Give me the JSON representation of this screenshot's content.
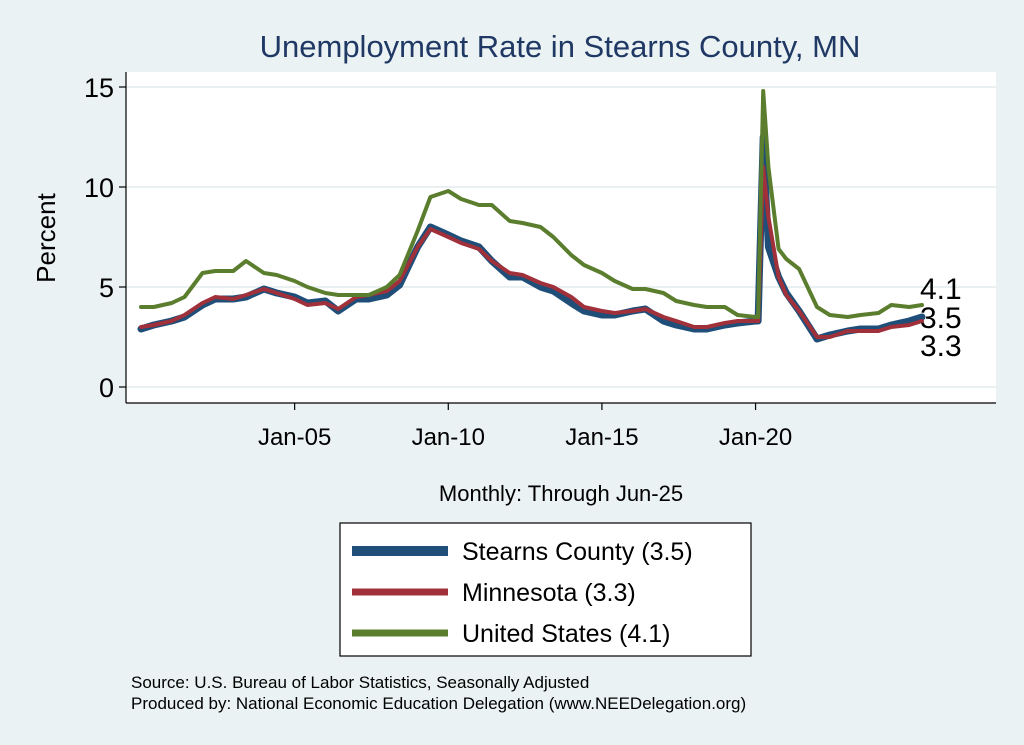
{
  "chart_data": {
    "type": "line",
    "title": "Unemployment Rate in Stearns  County, MN",
    "xlabel": "Monthly: Through Jun-25",
    "ylabel": "Percent",
    "ylim": [
      0,
      16
    ],
    "yticks": [
      0,
      5,
      10,
      15
    ],
    "xrange": [
      "2000-01",
      "2025-06"
    ],
    "xticks": [
      {
        "date": "2005-01",
        "label": "Jan-05"
      },
      {
        "date": "2010-01",
        "label": "Jan-10"
      },
      {
        "date": "2015-01",
        "label": "Jan-15"
      },
      {
        "date": "2020-01",
        "label": "Jan-20"
      }
    ],
    "grid": true,
    "legend_position": "bottom",
    "series": [
      {
        "name": "Stearns  County (3.5)",
        "color": "#1f4e79",
        "end_label": "3.5",
        "points": [
          [
            "2000-01",
            2.9
          ],
          [
            "2000-06",
            3.1
          ],
          [
            "2001-01",
            3.3
          ],
          [
            "2001-06",
            3.5
          ],
          [
            "2002-01",
            4.1
          ],
          [
            "2002-06",
            4.4
          ],
          [
            "2003-01",
            4.4
          ],
          [
            "2003-06",
            4.5
          ],
          [
            "2004-01",
            4.9
          ],
          [
            "2004-06",
            4.7
          ],
          [
            "2005-01",
            4.5
          ],
          [
            "2005-06",
            4.2
          ],
          [
            "2006-01",
            4.3
          ],
          [
            "2006-06",
            3.8
          ],
          [
            "2007-01",
            4.4
          ],
          [
            "2007-06",
            4.4
          ],
          [
            "2008-01",
            4.6
          ],
          [
            "2008-06",
            5.1
          ],
          [
            "2009-01",
            7.0
          ],
          [
            "2009-06",
            8.0
          ],
          [
            "2010-01",
            7.6
          ],
          [
            "2010-06",
            7.3
          ],
          [
            "2011-01",
            7.0
          ],
          [
            "2011-06",
            6.3
          ],
          [
            "2012-01",
            5.5
          ],
          [
            "2012-06",
            5.5
          ],
          [
            "2013-01",
            5.0
          ],
          [
            "2013-06",
            4.8
          ],
          [
            "2014-01",
            4.2
          ],
          [
            "2014-06",
            3.8
          ],
          [
            "2015-01",
            3.6
          ],
          [
            "2015-06",
            3.6
          ],
          [
            "2016-01",
            3.8
          ],
          [
            "2016-06",
            3.9
          ],
          [
            "2017-01",
            3.3
          ],
          [
            "2017-06",
            3.1
          ],
          [
            "2018-01",
            2.9
          ],
          [
            "2018-06",
            2.9
          ],
          [
            "2019-01",
            3.1
          ],
          [
            "2019-06",
            3.2
          ],
          [
            "2020-01",
            3.3
          ],
          [
            "2020-02",
            3.3
          ],
          [
            "2020-04",
            12.5
          ],
          [
            "2020-06",
            7.0
          ],
          [
            "2020-10",
            5.5
          ],
          [
            "2021-01",
            4.7
          ],
          [
            "2021-06",
            3.8
          ],
          [
            "2022-01",
            2.4
          ],
          [
            "2022-06",
            2.6
          ],
          [
            "2023-01",
            2.8
          ],
          [
            "2023-06",
            2.9
          ],
          [
            "2024-01",
            2.9
          ],
          [
            "2024-06",
            3.1
          ],
          [
            "2025-01",
            3.3
          ],
          [
            "2025-06",
            3.5
          ]
        ]
      },
      {
        "name": "Minnesota (3.3)",
        "color": "#a0303a",
        "end_label": "3.3",
        "points": [
          [
            "2000-01",
            3.0
          ],
          [
            "2000-06",
            3.1
          ],
          [
            "2001-01",
            3.3
          ],
          [
            "2001-06",
            3.6
          ],
          [
            "2002-01",
            4.2
          ],
          [
            "2002-06",
            4.5
          ],
          [
            "2003-01",
            4.4
          ],
          [
            "2003-06",
            4.6
          ],
          [
            "2004-01",
            4.9
          ],
          [
            "2004-06",
            4.7
          ],
          [
            "2005-01",
            4.4
          ],
          [
            "2005-06",
            4.1
          ],
          [
            "2006-01",
            4.2
          ],
          [
            "2006-06",
            3.9
          ],
          [
            "2007-01",
            4.5
          ],
          [
            "2007-06",
            4.6
          ],
          [
            "2008-01",
            4.8
          ],
          [
            "2008-06",
            5.3
          ],
          [
            "2009-01",
            7.0
          ],
          [
            "2009-06",
            7.9
          ],
          [
            "2010-01",
            7.5
          ],
          [
            "2010-06",
            7.2
          ],
          [
            "2011-01",
            6.9
          ],
          [
            "2011-06",
            6.3
          ],
          [
            "2012-01",
            5.7
          ],
          [
            "2012-06",
            5.6
          ],
          [
            "2013-01",
            5.2
          ],
          [
            "2013-06",
            5.0
          ],
          [
            "2014-01",
            4.5
          ],
          [
            "2014-06",
            4.0
          ],
          [
            "2015-01",
            3.8
          ],
          [
            "2015-06",
            3.7
          ],
          [
            "2016-01",
            3.8
          ],
          [
            "2016-06",
            3.9
          ],
          [
            "2017-01",
            3.5
          ],
          [
            "2017-06",
            3.3
          ],
          [
            "2018-01",
            3.0
          ],
          [
            "2018-06",
            3.0
          ],
          [
            "2019-01",
            3.2
          ],
          [
            "2019-06",
            3.3
          ],
          [
            "2020-01",
            3.3
          ],
          [
            "2020-02",
            3.3
          ],
          [
            "2020-04",
            11.0
          ],
          [
            "2020-06",
            8.5
          ],
          [
            "2020-10",
            5.5
          ],
          [
            "2021-01",
            4.6
          ],
          [
            "2021-06",
            3.8
          ],
          [
            "2022-01",
            2.5
          ],
          [
            "2022-06",
            2.5
          ],
          [
            "2023-01",
            2.8
          ],
          [
            "2023-06",
            2.8
          ],
          [
            "2024-01",
            2.8
          ],
          [
            "2024-06",
            3.0
          ],
          [
            "2025-01",
            3.1
          ],
          [
            "2025-06",
            3.3
          ]
        ]
      },
      {
        "name": "United States (4.1)",
        "color": "#5b7d2e",
        "end_label": "4.1",
        "points": [
          [
            "2000-01",
            4.0
          ],
          [
            "2000-06",
            4.0
          ],
          [
            "2001-01",
            4.2
          ],
          [
            "2001-06",
            4.5
          ],
          [
            "2002-01",
            5.7
          ],
          [
            "2002-06",
            5.8
          ],
          [
            "2003-01",
            5.8
          ],
          [
            "2003-06",
            6.3
          ],
          [
            "2004-01",
            5.7
          ],
          [
            "2004-06",
            5.6
          ],
          [
            "2005-01",
            5.3
          ],
          [
            "2005-06",
            5.0
          ],
          [
            "2006-01",
            4.7
          ],
          [
            "2006-06",
            4.6
          ],
          [
            "2007-01",
            4.6
          ],
          [
            "2007-06",
            4.6
          ],
          [
            "2008-01",
            5.0
          ],
          [
            "2008-06",
            5.6
          ],
          [
            "2009-01",
            7.8
          ],
          [
            "2009-06",
            9.5
          ],
          [
            "2010-01",
            9.8
          ],
          [
            "2010-06",
            9.4
          ],
          [
            "2011-01",
            9.1
          ],
          [
            "2011-06",
            9.1
          ],
          [
            "2012-01",
            8.3
          ],
          [
            "2012-06",
            8.2
          ],
          [
            "2013-01",
            8.0
          ],
          [
            "2013-06",
            7.5
          ],
          [
            "2014-01",
            6.6
          ],
          [
            "2014-06",
            6.1
          ],
          [
            "2015-01",
            5.7
          ],
          [
            "2015-06",
            5.3
          ],
          [
            "2016-01",
            4.9
          ],
          [
            "2016-06",
            4.9
          ],
          [
            "2017-01",
            4.7
          ],
          [
            "2017-06",
            4.3
          ],
          [
            "2018-01",
            4.1
          ],
          [
            "2018-06",
            4.0
          ],
          [
            "2019-01",
            4.0
          ],
          [
            "2019-06",
            3.6
          ],
          [
            "2020-01",
            3.5
          ],
          [
            "2020-02",
            3.5
          ],
          [
            "2020-04",
            14.8
          ],
          [
            "2020-06",
            11.0
          ],
          [
            "2020-10",
            6.9
          ],
          [
            "2021-01",
            6.4
          ],
          [
            "2021-06",
            5.9
          ],
          [
            "2022-01",
            4.0
          ],
          [
            "2022-06",
            3.6
          ],
          [
            "2023-01",
            3.5
          ],
          [
            "2023-06",
            3.6
          ],
          [
            "2024-01",
            3.7
          ],
          [
            "2024-06",
            4.1
          ],
          [
            "2025-01",
            4.0
          ],
          [
            "2025-06",
            4.1
          ]
        ]
      }
    ],
    "notes": [
      "Source: U.S. Bureau of Labor Statistics, Seasonally Adjusted",
      "Produced by: National Economic Education Delegation (www.NEEDelegation.org)"
    ]
  }
}
